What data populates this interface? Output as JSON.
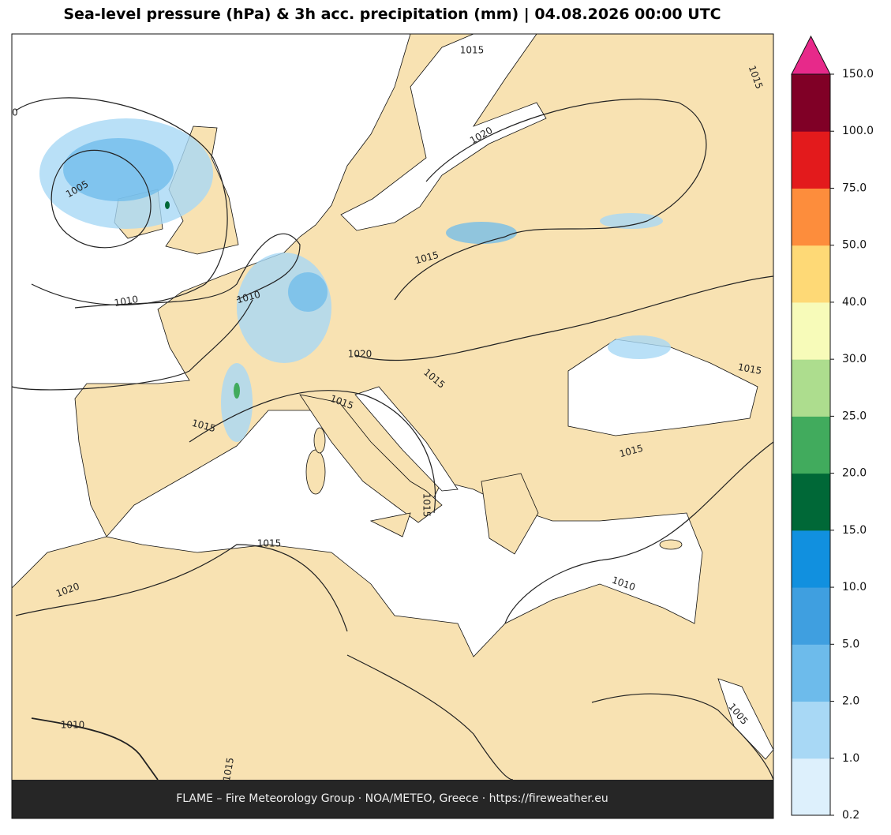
{
  "title": "Sea-level pressure (hPa) & 3h acc. precipitation (mm)  |  04.08.2026 00:00 UTC",
  "footer": "FLAME – Fire Meteorology Group · NOA/METEO, Greece · https://fireweather.eu",
  "colorbar": {
    "ticks": [
      0.2,
      {
        "value": 1,
        "label": "1.0"
      },
      {
        "value": 2,
        "label": "2.0"
      },
      {
        "value": 5,
        "label": "5.0"
      },
      {
        "value": 10,
        "label": "10.0"
      },
      {
        "value": 15,
        "label": "15.0"
      },
      {
        "value": 20,
        "label": "20.0"
      },
      {
        "value": 25,
        "label": "25.0"
      },
      {
        "value": 30,
        "label": "30.0"
      },
      {
        "value": 40,
        "label": "40.0"
      },
      {
        "value": 50,
        "label": "50.0"
      },
      {
        "value": 75,
        "label": "75.0"
      },
      {
        "value": 100,
        "label": "100.0"
      },
      {
        "value": 150,
        "label": "150.0"
      }
    ],
    "colors": [
      "#ddf0fc",
      "#a8d8f5",
      "#6dbbeb",
      "#3f9fe0",
      "#1190df",
      "#006837",
      "#41ab5d",
      "#addd8e",
      "#f7fbb9",
      "#fed976",
      "#fd8d3c",
      "#e31a1c",
      "#800026"
    ],
    "extend_color": "#e7298a"
  },
  "isobar_labels": [
    "1015",
    "1015",
    "0",
    "1020",
    "1005",
    "1015",
    "1010",
    "1010",
    "1020",
    "1015",
    "1015",
    "1015",
    "1015",
    "1015",
    "1015",
    "1015",
    "1020",
    "1010",
    "1010",
    "1005",
    "1015"
  ]
}
